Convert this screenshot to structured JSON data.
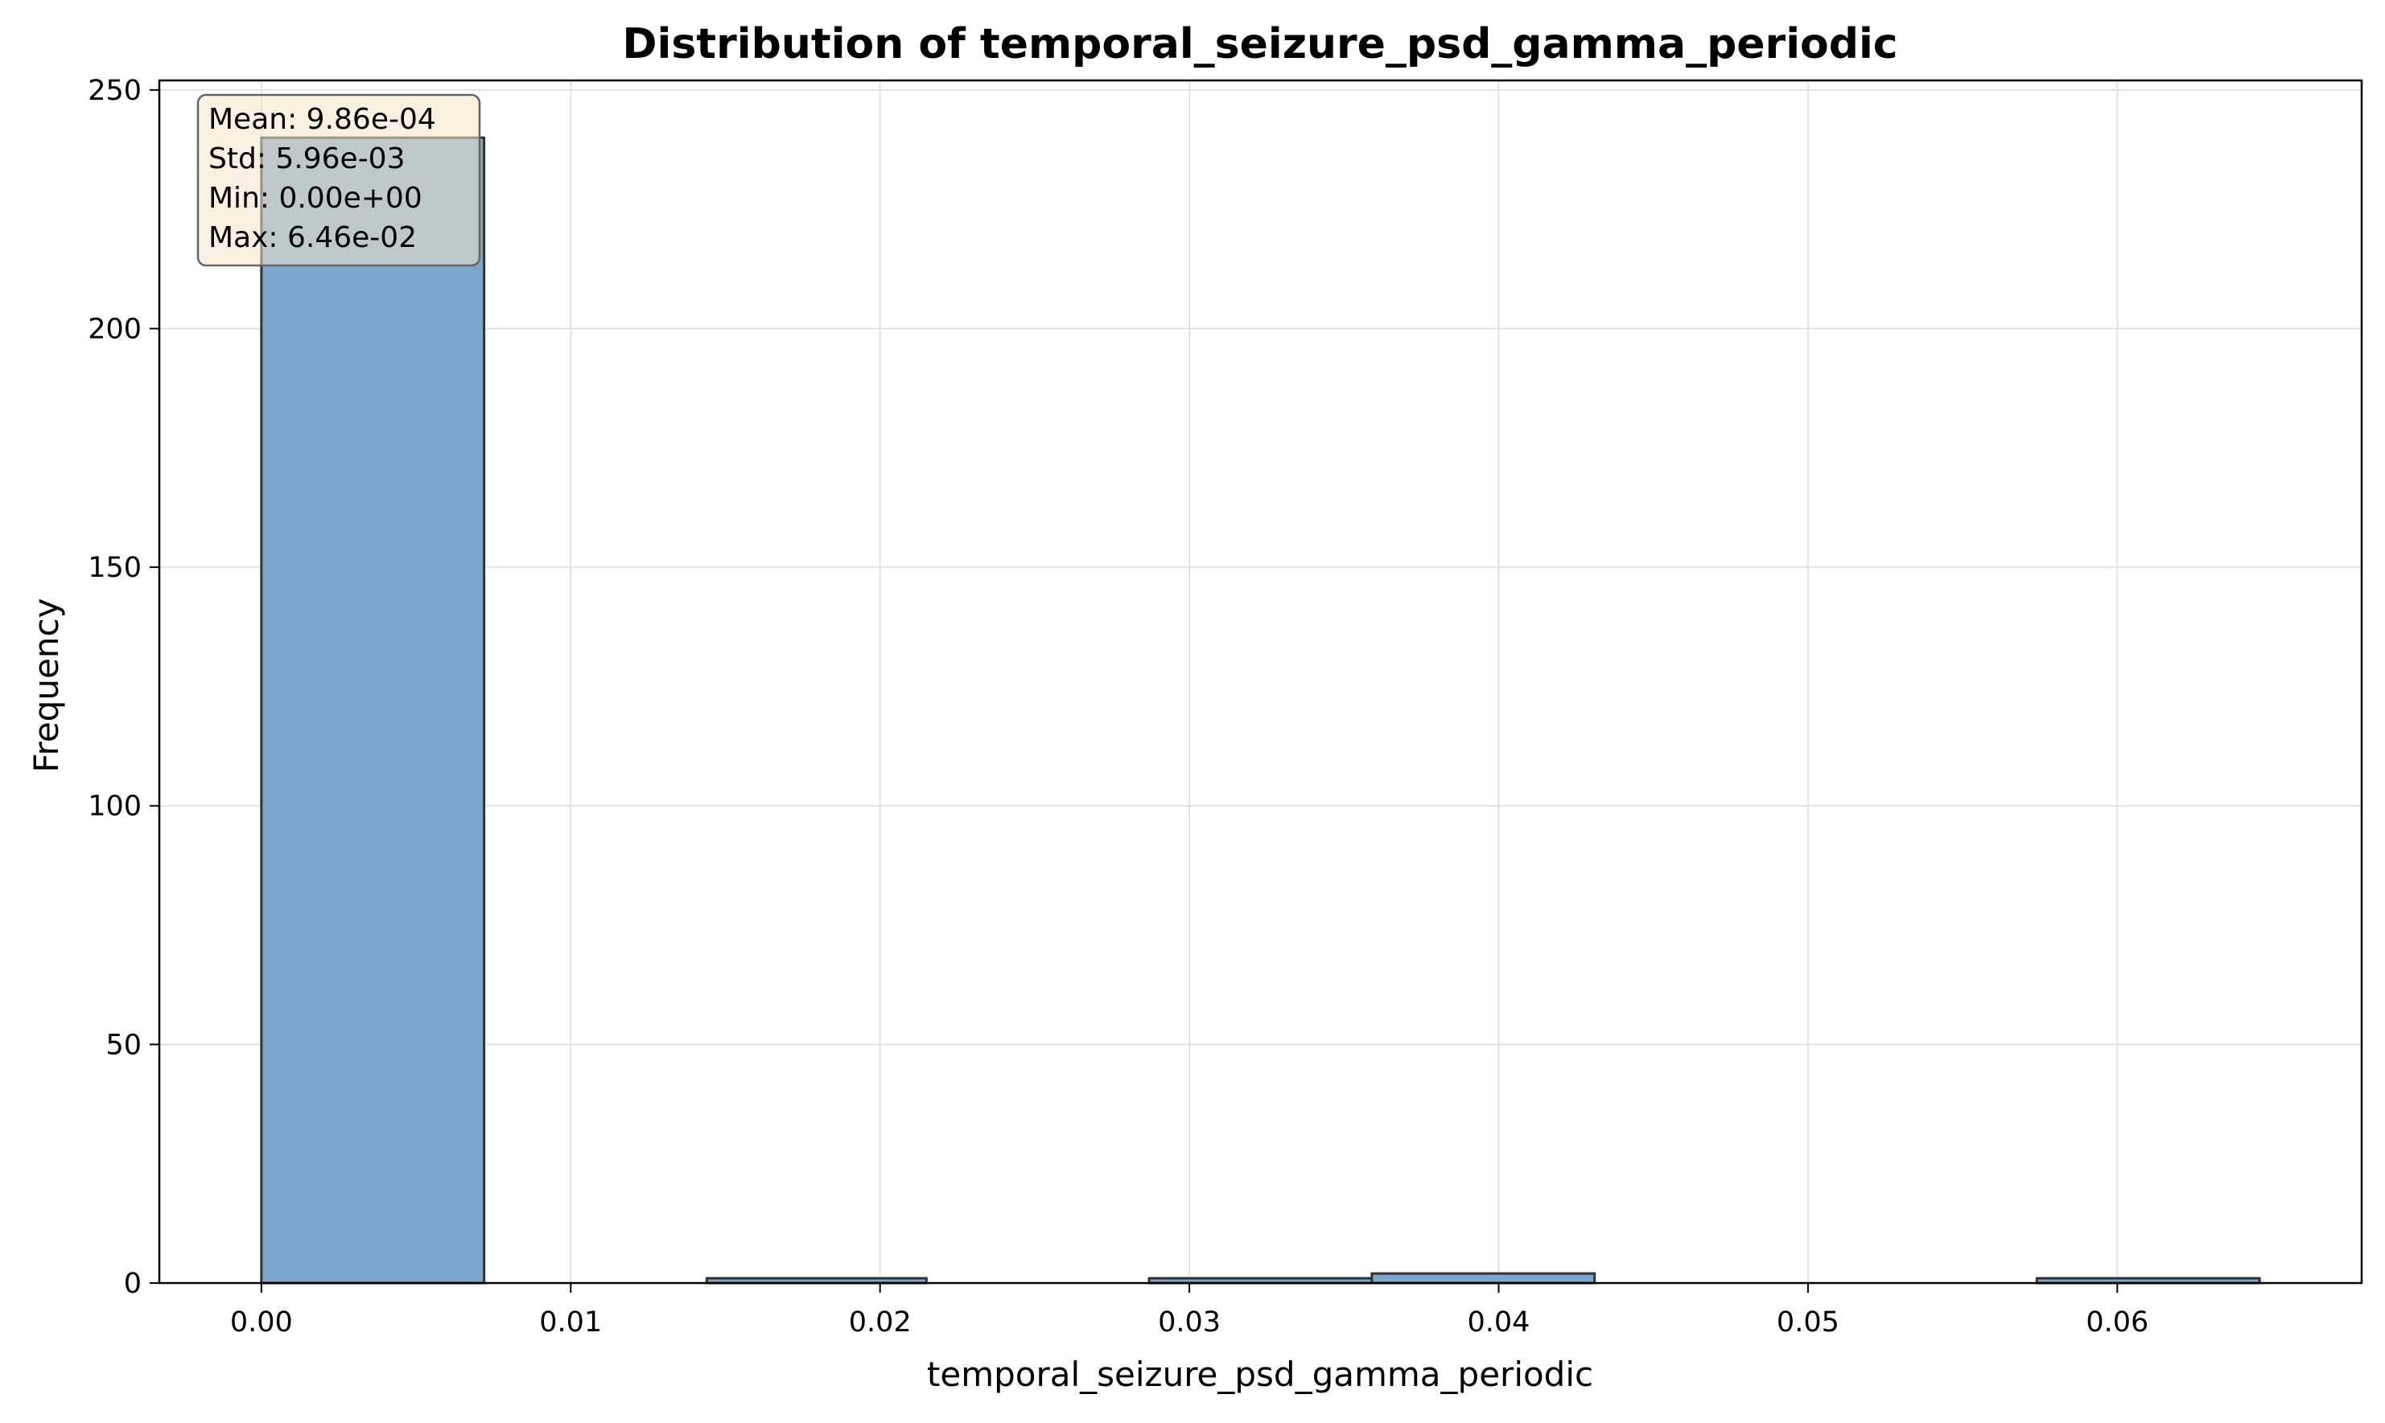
{
  "chart_data": {
    "type": "bar",
    "title": "Distribution of temporal_seizure_psd_gamma_periodic",
    "xlabel": "temporal_seizure_psd_gamma_periodic",
    "ylabel": "Frequency",
    "xlim": [
      -0.0033,
      0.0679
    ],
    "ylim": [
      0,
      252
    ],
    "x_ticks": [
      0.0,
      0.01,
      0.02,
      0.03,
      0.04,
      0.05,
      0.06
    ],
    "x_tick_labels": [
      "0.00",
      "0.01",
      "0.02",
      "0.03",
      "0.04",
      "0.05",
      "0.06"
    ],
    "y_ticks": [
      0,
      50,
      100,
      150,
      200,
      250
    ],
    "y_tick_labels": [
      "0",
      "50",
      "100",
      "150",
      "200",
      "250"
    ],
    "grid": true,
    "bins": [
      {
        "x0": 0.0,
        "x1": 0.0072,
        "count": 240
      },
      {
        "x0": 0.0072,
        "x1": 0.0144,
        "count": 0
      },
      {
        "x0": 0.0144,
        "x1": 0.0215,
        "count": 1
      },
      {
        "x0": 0.0215,
        "x1": 0.0287,
        "count": 0
      },
      {
        "x0": 0.0287,
        "x1": 0.0359,
        "count": 1
      },
      {
        "x0": 0.0359,
        "x1": 0.0431,
        "count": 2
      },
      {
        "x0": 0.0431,
        "x1": 0.0502,
        "count": 0
      },
      {
        "x0": 0.0502,
        "x1": 0.0574,
        "count": 0
      },
      {
        "x0": 0.0574,
        "x1": 0.0646,
        "count": 1
      }
    ],
    "colors": {
      "bar_fill": "#7ba7cc",
      "bar_edge": "#333333",
      "grid": "#e3e3e3",
      "stats_box_fill": "#f5e6c8",
      "stats_box_edge": "#666666"
    },
    "stats_box": {
      "placement": "top-left",
      "lines": [
        "Mean: 9.86e-04",
        "Std: 5.96e-03",
        "Min: 0.00e+00",
        "Max: 6.46e-02"
      ]
    }
  }
}
